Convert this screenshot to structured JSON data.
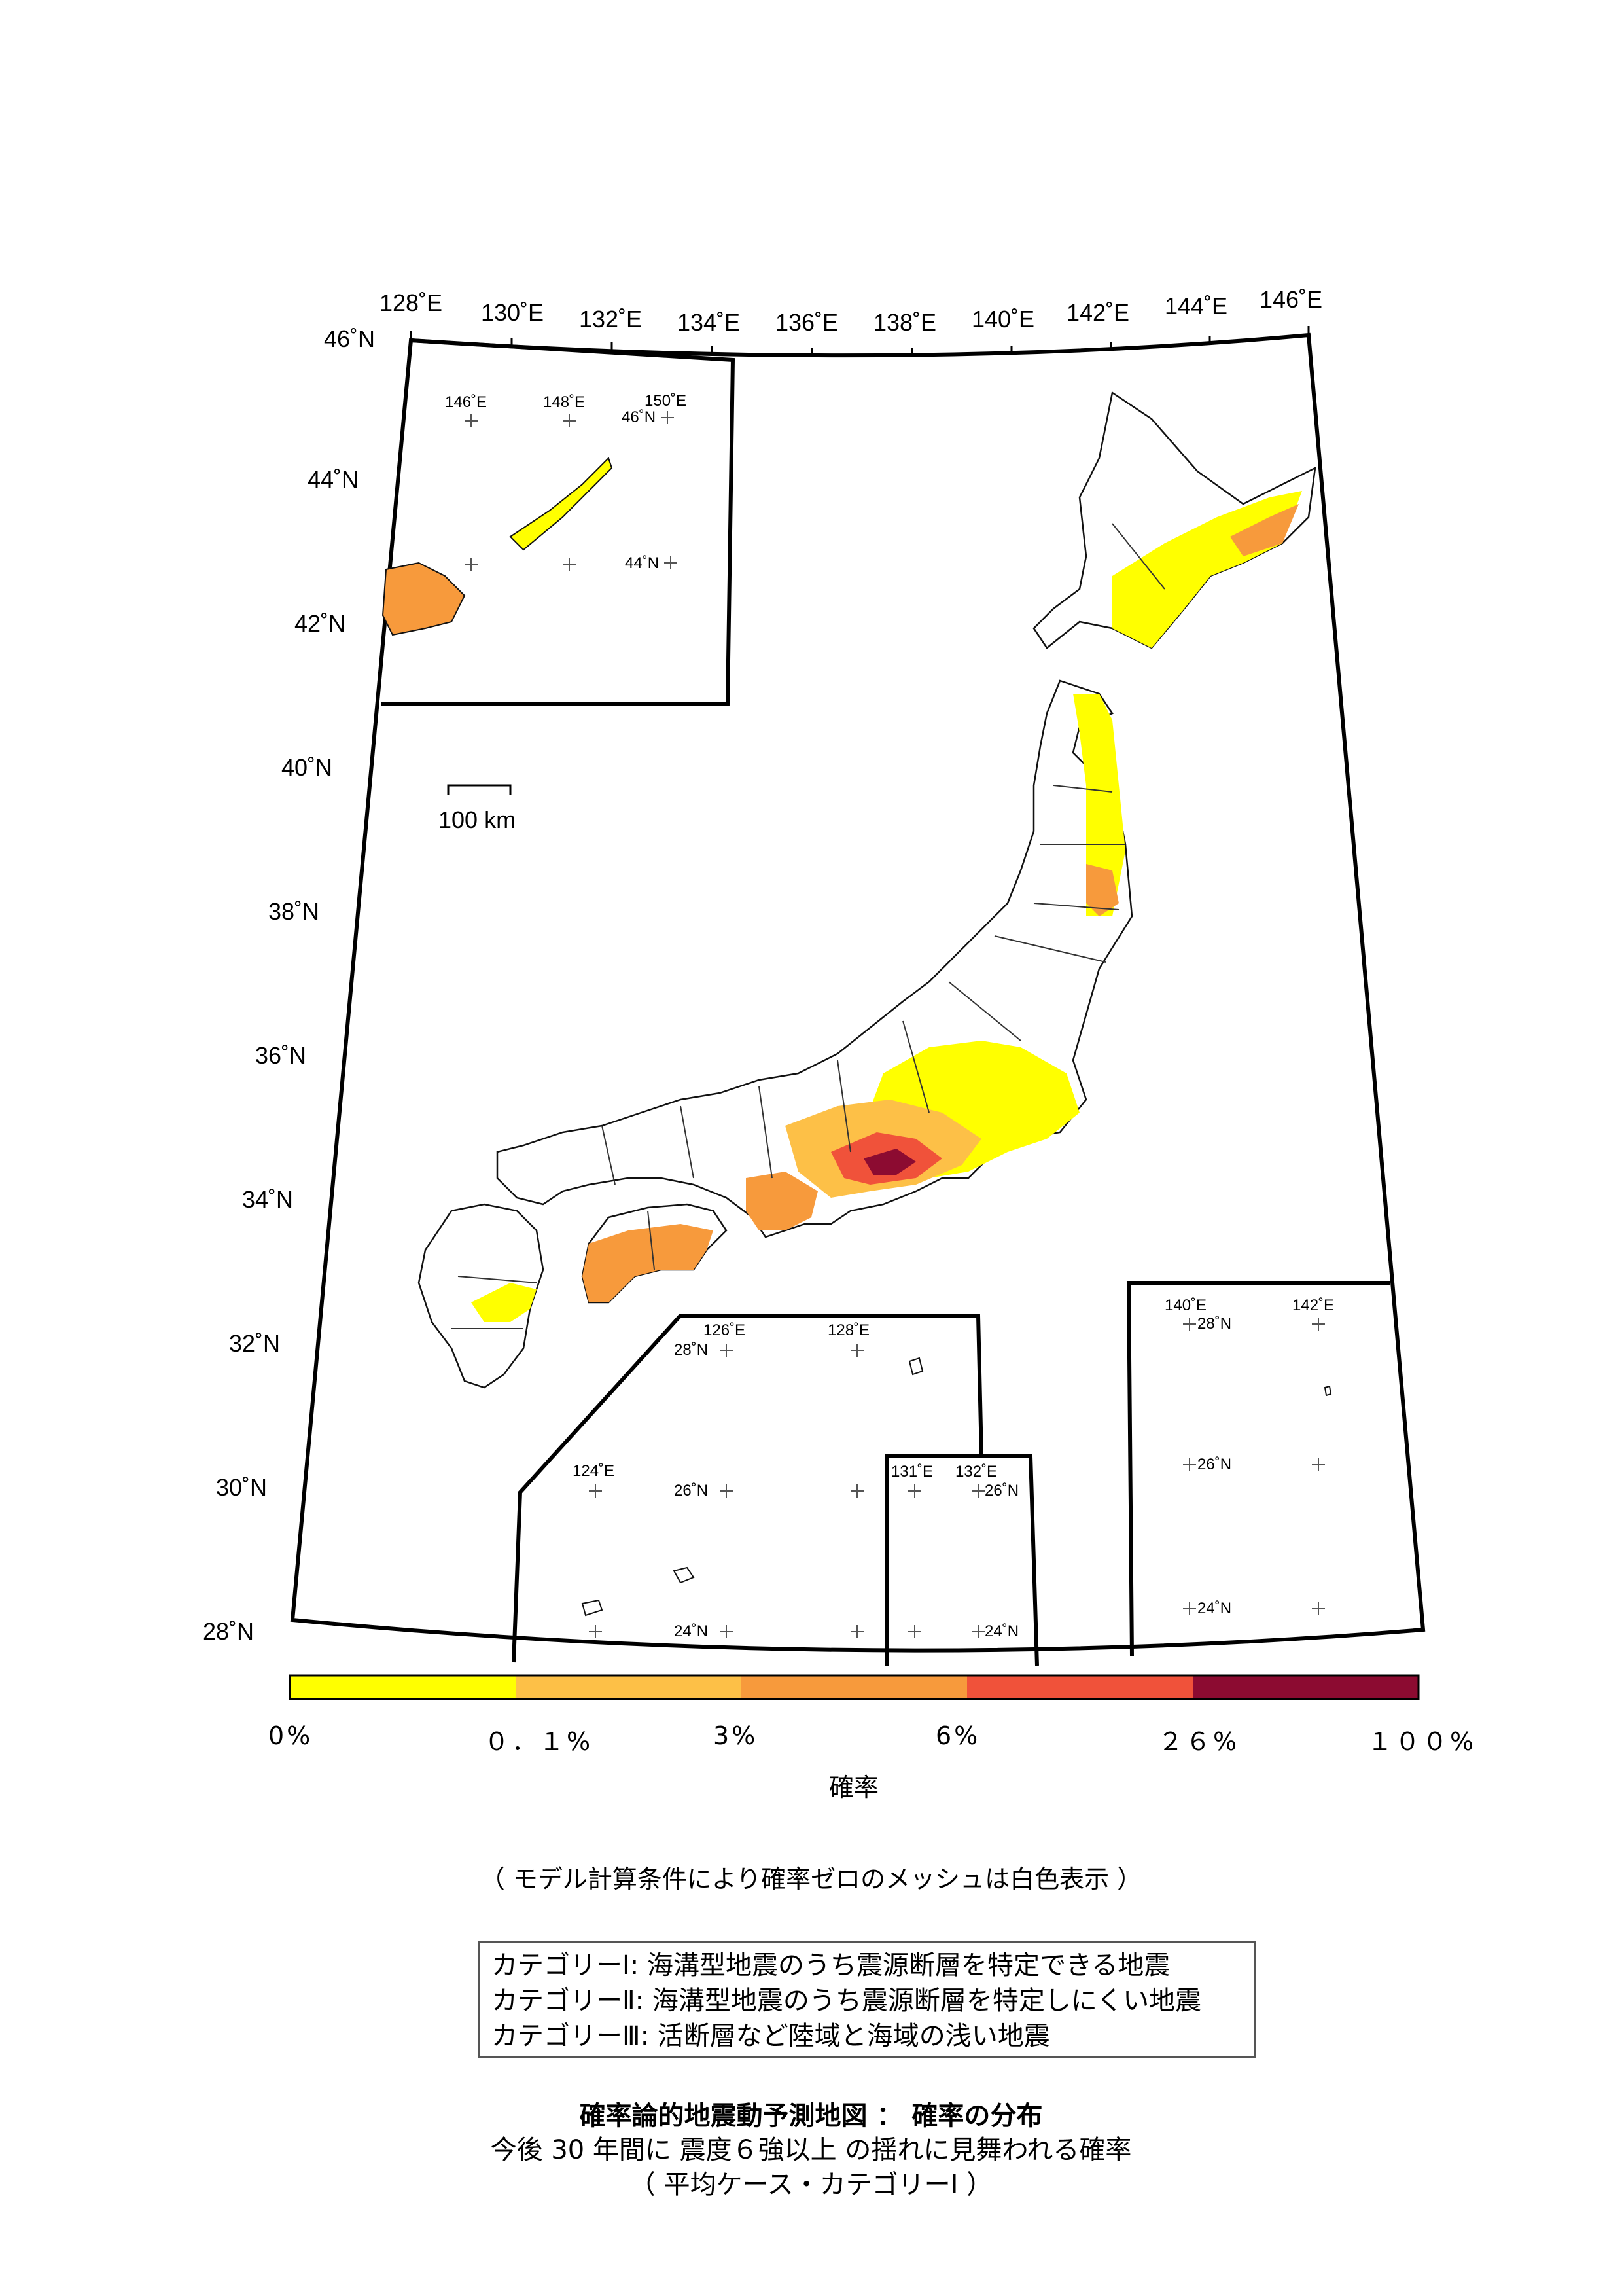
{
  "axis": {
    "lon_top": [
      "128˚E",
      "130˚E",
      "132˚E",
      "134˚E",
      "136˚E",
      "138˚E",
      "140˚E",
      "142˚E",
      "144˚E",
      "146˚E"
    ],
    "lat_left": [
      "46˚N",
      "44˚N",
      "42˚N",
      "40˚N",
      "38˚N",
      "36˚N",
      "34˚N",
      "32˚N",
      "30˚N",
      "28˚N"
    ]
  },
  "scale_bar": {
    "label": "100 km"
  },
  "inset_kuril": {
    "lon": [
      "146˚E",
      "148˚E",
      "150˚E"
    ],
    "lat": [
      "46˚N",
      "44˚N"
    ]
  },
  "inset_ryukyu": {
    "lon": [
      "126˚E",
      "128˚E",
      "124˚E"
    ],
    "lat": [
      "28˚N",
      "26˚N",
      "24˚N"
    ]
  },
  "inset_daito": {
    "lon": [
      "131˚E",
      "132˚E"
    ],
    "lat": [
      "26˚N",
      "24˚N"
    ]
  },
  "inset_ogasawara": {
    "lon": [
      "140˚E",
      "142˚E"
    ],
    "lat": [
      "28˚N",
      "26˚N",
      "24˚N"
    ]
  },
  "colorbar": {
    "colors": [
      "#ffff00",
      "#fdc047",
      "#f79a3c",
      "#f0523a",
      "#8c0b31"
    ],
    "ticks": [
      "0%",
      "０．１%",
      "3%",
      "6%",
      "２６%",
      "１００%"
    ],
    "label": "確率"
  },
  "hazard_colors": {
    "low": "#ffff00",
    "mid1": "#fdc047",
    "mid2": "#f79a3c",
    "high": "#f0523a",
    "max": "#8c0b31"
  },
  "note": "（ モデル計算条件により確率ゼロのメッシュは白色表示 ）",
  "legend": [
    "カテゴリーⅠ: 海溝型地震のうち震源断層を特定できる地震",
    "カテゴリーⅡ: 海溝型地震のうち震源断層を特定しにくい地震",
    "カテゴリーⅢ: 活断層など陸域と海域の浅い地震"
  ],
  "caption": {
    "title": "確率論的地震動予測地図 ： 確率の分布",
    "subtitle": "今後 30 年間に 震度６強以上 の揺れに見舞われる確率",
    "subtitle2": "（ 平均ケース・カテゴリーⅠ ）"
  }
}
